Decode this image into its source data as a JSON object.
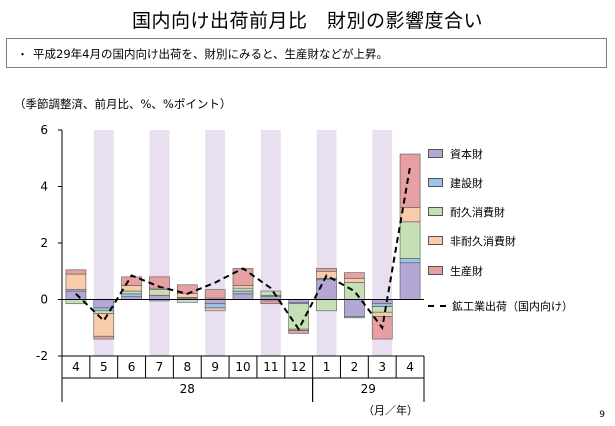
{
  "title": "国内向け出荷前月比　財別の影響度合い",
  "summary": {
    "bullet": "・",
    "text": "平成29年4月の国内向け出荷を、財別にみると、生産財などが上昇。"
  },
  "units_note": "（季節調整済、前月比、%、%ポイント）",
  "page_number": "9",
  "chart_data": {
    "type": "bar",
    "stacked": true,
    "categories": [
      "4",
      "5",
      "6",
      "7",
      "8",
      "9",
      "10",
      "11",
      "12",
      "1",
      "2",
      "3",
      "4"
    ],
    "year_labels": [
      {
        "label": "28",
        "from": 0,
        "to": 8
      },
      {
        "label": "29",
        "from": 9,
        "to": 12
      }
    ],
    "xunit": "（月／年）",
    "ylim": [
      -2,
      6
    ],
    "yticks": [
      -2,
      0,
      2,
      4,
      6
    ],
    "shaded_categories": [
      1,
      3,
      5,
      7,
      9,
      11
    ],
    "shade_color": "#e8e0f0",
    "series": [
      {
        "name": "資本財",
        "color": "#b4a7d6",
        "values": [
          0.3,
          -0.3,
          0.1,
          0.15,
          0.05,
          -0.15,
          0.2,
          0.1,
          -0.1,
          0.7,
          -0.6,
          -0.15,
          1.3
        ]
      },
      {
        "name": "建設財",
        "color": "#9dc3e6",
        "values": [
          0.05,
          -0.1,
          0.1,
          -0.05,
          0.02,
          -0.15,
          0.1,
          0.05,
          -0.05,
          0.05,
          -0.05,
          -0.1,
          0.15
        ]
      },
      {
        "name": "耐久消費財",
        "color": "#c5e0b4",
        "values": [
          -0.15,
          -0.1,
          0.1,
          0.2,
          -0.1,
          0.05,
          0.1,
          0.15,
          -0.9,
          -0.4,
          0.6,
          -0.2,
          1.3
        ]
      },
      {
        "name": "非耐久消費財",
        "color": "#f8cbad",
        "values": [
          0.55,
          -0.8,
          0.2,
          0.05,
          0.15,
          -0.1,
          0.1,
          -0.05,
          -0.05,
          0.25,
          0.15,
          -0.15,
          0.5
        ]
      },
      {
        "name": "生産財",
        "color": "#e6a0a4",
        "values": [
          0.15,
          -0.1,
          0.3,
          0.4,
          0.3,
          0.3,
          0.6,
          -0.1,
          -0.1,
          0.1,
          0.2,
          -0.8,
          1.9
        ]
      }
    ],
    "line": {
      "name": "鉱工業出荷（国内向け）",
      "values": [
        0.2,
        -0.75,
        0.85,
        0.45,
        0.2,
        0.6,
        1.1,
        0.4,
        -1.05,
        0.85,
        0.3,
        -1.0,
        4.7
      ]
    }
  }
}
